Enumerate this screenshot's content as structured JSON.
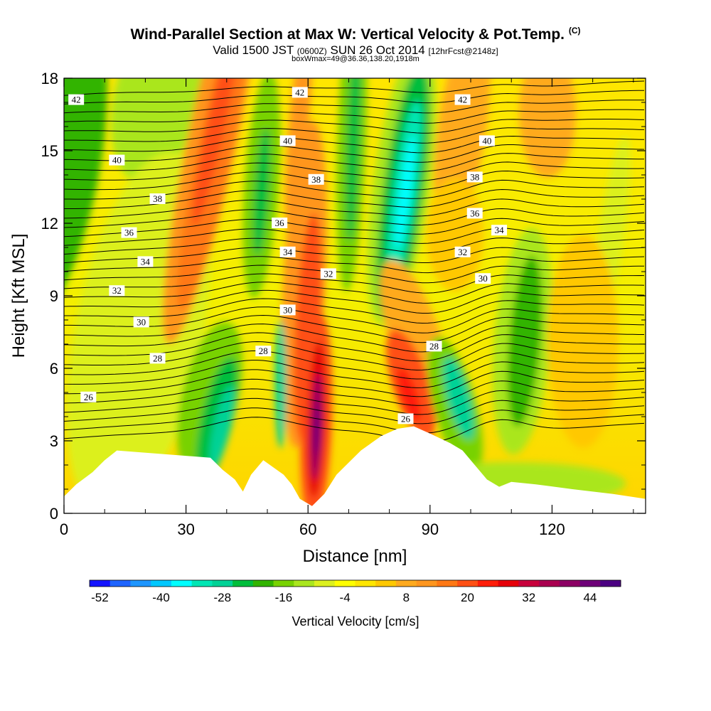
{
  "header": {
    "title_main": "Wind-Parallel Section at Max W: Vertical Velocity & Pot.Temp.",
    "title_mark": "(C)",
    "subtitle_a": "Valid 1500 JST",
    "subtitle_b": "(0600Z)",
    "subtitle_c": "SUN 26 Oct 2014",
    "subtitle_d": "[12hrFcst@2148z]",
    "subtitle2": "boxWmax=49@36.36,138.20,1918m"
  },
  "chart_data": {
    "type": "heatmap",
    "xlabel": "Distance [nm]",
    "ylabel": "Height [Kft MSL]",
    "xlim": [
      0,
      143
    ],
    "ylim": [
      0,
      18
    ],
    "x_ticks": [
      0,
      30,
      60,
      90,
      120
    ],
    "y_ticks": [
      0,
      3,
      6,
      9,
      12,
      15,
      18
    ],
    "colorbar": {
      "title": "Vertical Velocity [cm/s]",
      "labels": [
        "-52",
        "-40",
        "-28",
        "-16",
        "-4",
        "8",
        "20",
        "32",
        "44"
      ],
      "colors": [
        "#1414ff",
        "#1e64ff",
        "#1e96ff",
        "#00c8ff",
        "#00ffff",
        "#00e6b4",
        "#00d296",
        "#00be3c",
        "#32b400",
        "#78d200",
        "#aae61e",
        "#dcf01e",
        "#ffff00",
        "#ffe600",
        "#ffc800",
        "#ffaa1e",
        "#ff961e",
        "#ff7814",
        "#ff5014",
        "#ff1e0a",
        "#e6000a",
        "#c8003c",
        "#aa0050",
        "#8c0064",
        "#6e0078",
        "#4b0082"
      ]
    },
    "terrain_profile": [
      [
        0,
        0.7
      ],
      [
        3,
        1.2
      ],
      [
        7,
        1.7
      ],
      [
        10,
        2.2
      ],
      [
        13,
        2.6
      ],
      [
        36,
        2.3
      ],
      [
        39,
        1.8
      ],
      [
        42,
        1.4
      ],
      [
        44,
        0.9
      ],
      [
        46,
        1.6
      ],
      [
        49,
        2.2
      ],
      [
        54,
        1.6
      ],
      [
        56,
        1.2
      ],
      [
        58,
        0.6
      ],
      [
        61,
        0.3
      ],
      [
        64,
        0.8
      ],
      [
        67,
        1.6
      ],
      [
        70,
        2.1
      ],
      [
        73,
        2.6
      ],
      [
        78,
        3.2
      ],
      [
        82,
        3.5
      ],
      [
        86,
        3.6
      ],
      [
        90,
        3.3
      ],
      [
        95,
        2.9
      ],
      [
        98,
        2.6
      ],
      [
        101,
        2.0
      ],
      [
        104,
        1.4
      ],
      [
        107,
        1.1
      ],
      [
        110,
        1.3
      ],
      [
        116,
        1.2
      ],
      [
        125,
        1.0
      ],
      [
        135,
        0.8
      ],
      [
        143,
        0.6
      ]
    ],
    "theta_contour_labels": [
      {
        "text": "42",
        "x": 3,
        "y": 17.1
      },
      {
        "text": "42",
        "x": 58,
        "y": 17.4
      },
      {
        "text": "42",
        "x": 98,
        "y": 17.1
      },
      {
        "text": "40",
        "x": 13,
        "y": 14.6
      },
      {
        "text": "40",
        "x": 55,
        "y": 15.4
      },
      {
        "text": "40",
        "x": 104,
        "y": 15.4
      },
      {
        "text": "38",
        "x": 23,
        "y": 13.0
      },
      {
        "text": "38",
        "x": 62,
        "y": 13.8
      },
      {
        "text": "38",
        "x": 101,
        "y": 13.9
      },
      {
        "text": "36",
        "x": 16,
        "y": 11.6
      },
      {
        "text": "36",
        "x": 53,
        "y": 12.0
      },
      {
        "text": "36",
        "x": 101,
        "y": 12.4
      },
      {
        "text": "34",
        "x": 20,
        "y": 10.4
      },
      {
        "text": "34",
        "x": 55,
        "y": 10.8
      },
      {
        "text": "34",
        "x": 107,
        "y": 11.7
      },
      {
        "text": "32",
        "x": 13,
        "y": 9.2
      },
      {
        "text": "32",
        "x": 65,
        "y": 9.9
      },
      {
        "text": "32",
        "x": 98,
        "y": 10.8
      },
      {
        "text": "30",
        "x": 19,
        "y": 7.9
      },
      {
        "text": "30",
        "x": 55,
        "y": 8.4
      },
      {
        "text": "30",
        "x": 103,
        "y": 9.7
      },
      {
        "text": "28",
        "x": 23,
        "y": 6.4
      },
      {
        "text": "28",
        "x": 49,
        "y": 6.7
      },
      {
        "text": "28",
        "x": 91,
        "y": 6.9
      },
      {
        "text": "26",
        "x": 6,
        "y": 4.8
      },
      {
        "text": "26",
        "x": 84,
        "y": 3.9
      }
    ]
  }
}
